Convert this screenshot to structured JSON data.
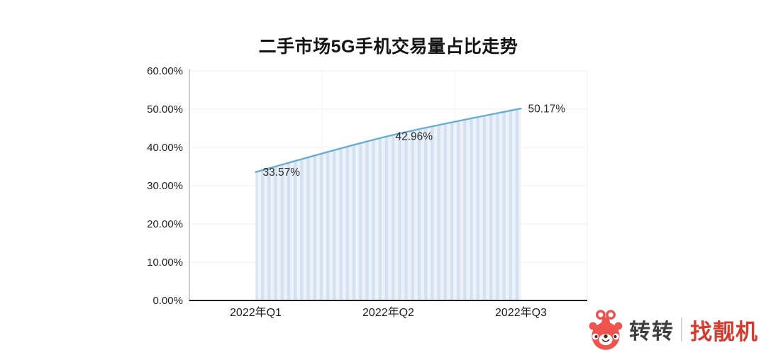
{
  "title": "二手市场5G手机交易量占比走势",
  "chart_data": {
    "type": "area",
    "title": "二手市场5G手机交易量占比走势",
    "categories": [
      "2022年Q1",
      "2022年Q2",
      "2022年Q3"
    ],
    "values": [
      33.57,
      42.96,
      50.17
    ],
    "point_labels": [
      "33.57%",
      "42.96%",
      "50.17%"
    ],
    "xlabel": "",
    "ylabel": "",
    "ylim": [
      0,
      60
    ],
    "y_ticks": [
      0,
      10,
      20,
      30,
      40,
      50,
      60
    ],
    "y_tick_labels": [
      "0.00%",
      "10.00%",
      "20.00%",
      "30.00%",
      "40.00%",
      "50.00%",
      "60.00%"
    ],
    "grid": true,
    "smooth_line": true,
    "legend_position": "none",
    "line_color": "#6aadce",
    "area_stripe_dark": "#d6e1ef",
    "area_stripe_light": "#ecf2f9",
    "x_axis_color": "#1f1f1f",
    "y_axis_color": "#9b9b9b",
    "gridline_color": "#efefef"
  },
  "logo": {
    "mascot_icon": "zhuanzhuan-bear-mascot",
    "brand_primary": "转转",
    "divider": "|",
    "brand_secondary": "找靓机",
    "colors": {
      "mascot_red": "#ee5350",
      "feature_dark": "#4d2323",
      "primary_text": "#3e3e3e",
      "secondary_text": "#d43b2e",
      "divider": "#d4d4d4"
    }
  }
}
